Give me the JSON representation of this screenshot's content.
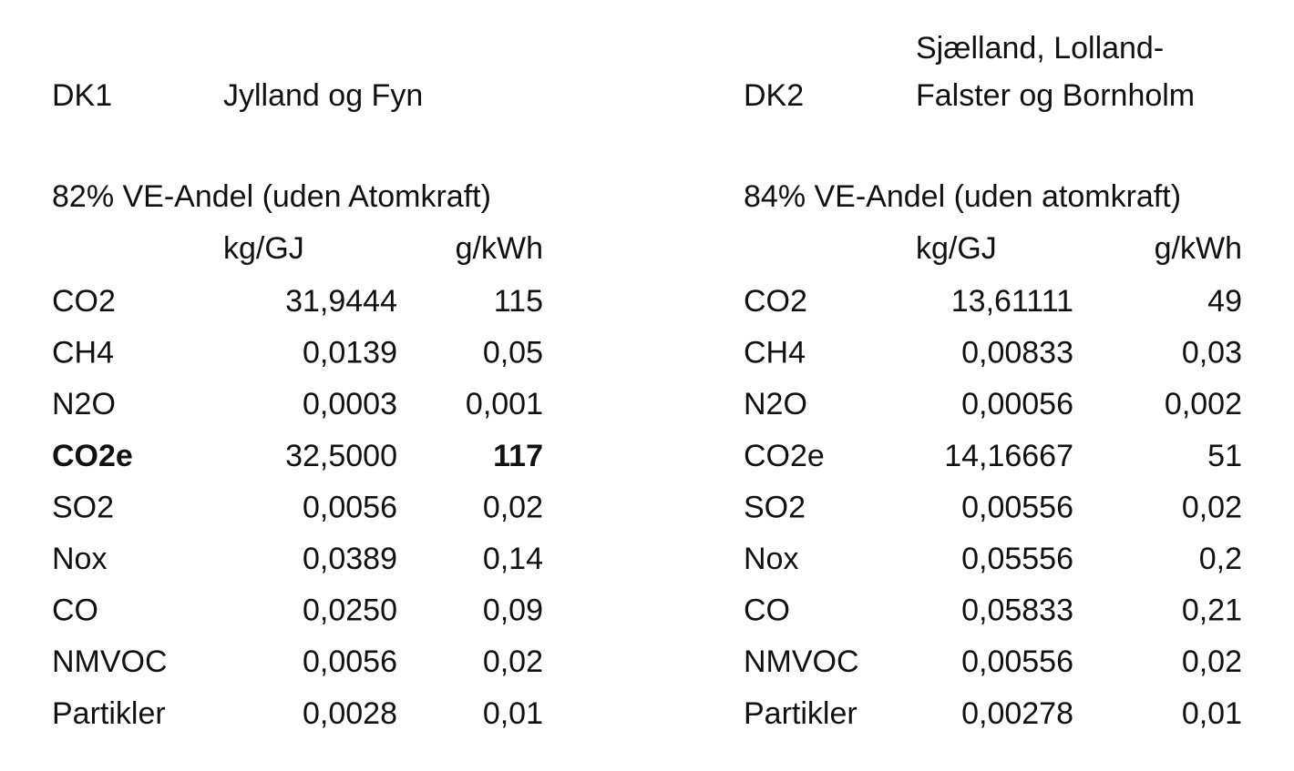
{
  "tables": [
    {
      "code": "DK1",
      "region": [
        "Jylland og Fyn"
      ],
      "share": "82% VE-Andel (uden Atomkraft)",
      "columns": [
        "kg/GJ",
        "g/kWh"
      ],
      "rows": [
        [
          "CO2",
          "31,9444",
          "115"
        ],
        [
          "CH4",
          "0,0139",
          "0,05"
        ],
        [
          "N2O",
          "0,0003",
          "0,001"
        ],
        [
          "CO2e",
          "32,5000",
          "117"
        ],
        [
          "SO2",
          "0,0056",
          "0,02"
        ],
        [
          "Nox",
          "0,0389",
          "0,14"
        ],
        [
          "CO",
          "0,0250",
          "0,09"
        ],
        [
          "NMVOC",
          "0,0056",
          "0,02"
        ],
        [
          "Partikler",
          "0,0028",
          "0,01"
        ]
      ]
    },
    {
      "code": "DK2",
      "region": [
        "Sjælland, Lolland-",
        "Falster og Bornholm"
      ],
      "share": "84% VE-Andel (uden atomkraft)",
      "columns": [
        "kg/GJ",
        "g/kWh"
      ],
      "rows": [
        [
          "CO2",
          "13,61111",
          "49"
        ],
        [
          "CH4",
          "0,00833",
          "0,03"
        ],
        [
          "N2O",
          "0,00056",
          "0,002"
        ],
        [
          "CO2e",
          "14,16667",
          "51"
        ],
        [
          "SO2",
          "0,00556",
          "0,02"
        ],
        [
          "Nox",
          "0,05556",
          "0,2"
        ],
        [
          "CO",
          "0,05833",
          "0,21"
        ],
        [
          "NMVOC",
          "0,00556",
          "0,02"
        ],
        [
          "Partikler",
          "0,00278",
          "0,01"
        ]
      ]
    }
  ]
}
